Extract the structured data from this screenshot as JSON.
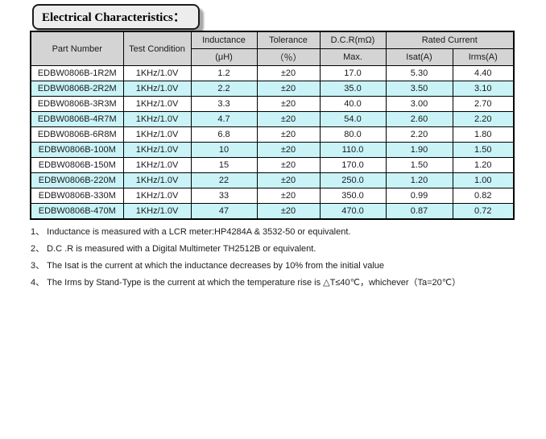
{
  "title": "Electrical Characteristics：",
  "colors": {
    "header_bg": "#d4d4d4",
    "alt_row": "#c9f3f7",
    "title_box_bg": "#ededed"
  },
  "table": {
    "header": {
      "part_number": "Part Number",
      "test_condition": "Test Condition",
      "inductance": "Inductance",
      "inductance_unit": "(μH)",
      "tolerance": "Tolerance",
      "tolerance_unit": "（％）",
      "dcr": "D.C.R(mΩ)",
      "dcr_sub": "Max.",
      "rated_current": "Rated Current",
      "isat": "Isat(A)",
      "irms": "Irms(A)"
    },
    "rows": [
      [
        "EDBW0806B-1R2M",
        "1KHz/1.0V",
        "1.2",
        "±20",
        "17.0",
        "5.30",
        "4.40"
      ],
      [
        "EDBW0806B-2R2M",
        "1KHz/1.0V",
        "2.2",
        "±20",
        "35.0",
        "3.50",
        "3.10"
      ],
      [
        "EDBW0806B-3R3M",
        "1KHz/1.0V",
        "3.3",
        "±20",
        "40.0",
        "3.00",
        "2.70"
      ],
      [
        "EDBW0806B-4R7M",
        "1KHz/1.0V",
        "4.7",
        "±20",
        "54.0",
        "2.60",
        "2.20"
      ],
      [
        "EDBW0806B-6R8M",
        "1KHz/1.0V",
        "6.8",
        "±20",
        "80.0",
        "2.20",
        "1.80"
      ],
      [
        "EDBW0806B-100M",
        "1KHz/1.0V",
        "10",
        "±20",
        "110.0",
        "1.90",
        "1.50"
      ],
      [
        "EDBW0806B-150M",
        "1KHz/1.0V",
        "15",
        "±20",
        "170.0",
        "1.50",
        "1.20"
      ],
      [
        "EDBW0806B-220M",
        "1KHz/1.0V",
        "22",
        "±20",
        "250.0",
        "1.20",
        "1.00"
      ],
      [
        "EDBW0806B-330M",
        "1KHz/1.0V",
        "33",
        "±20",
        "350.0",
        "0.99",
        "0.82"
      ],
      [
        "EDBW0806B-470M",
        "1KHz/1.0V",
        "47",
        "±20",
        "470.0",
        "0.87",
        "0.72"
      ]
    ]
  },
  "notes": [
    "1、 Inductance is measured with a LCR meter:HP4284A & 3532-50 or equivalent.",
    "2、 D.C .R is measured with a Digital Multimeter TH2512B or equivalent.",
    "3、 The Isat is the current at which the inductance decreases by 10% from the initial value",
    "4、 The Irms by Stand-Type is the current at which the temperature rise is △T≤40℃，whichever（Ta=20℃）"
  ]
}
